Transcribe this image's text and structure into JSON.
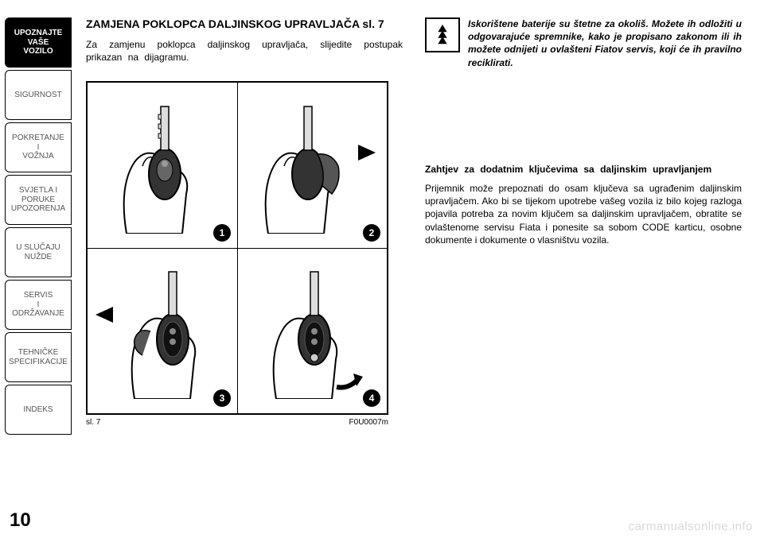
{
  "sidebar": {
    "tabs": [
      {
        "label": "UPOZNAJTE\nVAŠE\nVOZILO",
        "active": true
      },
      {
        "label": "SIGURNOST",
        "active": false
      },
      {
        "label": "POKRETANJE\nI\nVOŽNJA",
        "active": false
      },
      {
        "label": "SVJETLA I\nPORUKE\nUPOZORENJA",
        "active": false
      },
      {
        "label": "U SLUČAJU\nNUŽDE",
        "active": false
      },
      {
        "label": "SERVIS\nI\nODRŽAVANJE",
        "active": false
      },
      {
        "label": "TEHNIČKE\nSPECIFIKACIJE",
        "active": false
      },
      {
        "label": "INDEKS",
        "active": false
      }
    ]
  },
  "left": {
    "heading": "ZAMJENA POKLOPCA DALJINSKOG UPRAVLJAČA sl. 7",
    "body": "Za zamjenu poklopca daljinskog upravljača, slijedite postupak prikazan na dijagramu."
  },
  "figure": {
    "steps": [
      "1",
      "2",
      "3",
      "4"
    ],
    "caption_left": "sl. 7",
    "caption_right": "F0U0007m"
  },
  "right": {
    "info": "Iskorištene baterije su štetne za okoliš. Možete ih odložiti u odgovarajuće spremnike, kako je propisano zakonom ili ih možete odnijeti u ovlašteni Fiatov servis, koji će ih pravilno reciklirati.",
    "subheading": "Zahtjev za dodatnim ključevima sa daljinskim upravljanjem",
    "body": "Prijemnik može prepoznati do osam ključeva sa ugrađenim daljinskim upravljačem. Ako bi se tijekom upotrebe vašeg vozila iz bilo kojeg razloga pojavila potreba za novim ključem sa daljinskim upravljačem, obratite se ovlaštenome servisu Fiata i ponesite sa sobom CODE karticu, osobne dokumente i dokumente o vlasništvu vozila."
  },
  "page_number": "10",
  "watermark": "carmanualsonline.info",
  "colors": {
    "text": "#000000",
    "background": "#ffffff",
    "inactive_tab_text": "#555555",
    "watermark": "#d9d9d9"
  }
}
